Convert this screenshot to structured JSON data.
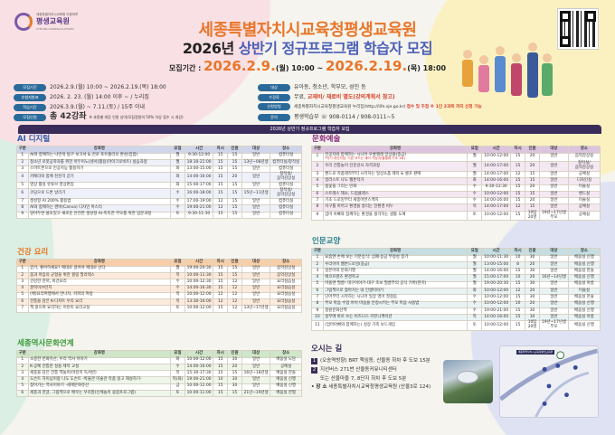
{
  "logo": {
    "small": "세종특별자치시교육청 이음마루",
    "name": "평생교육원",
    "eng": "LIFELONG LEARNING PLATFORM"
  },
  "header": {
    "title1": "세종특별자치시교육청평생교육원",
    "title2_year": "2026년",
    "title2_rest": "상반기 정규프로그램 학습자 모집",
    "period_label": "모집기간 :",
    "period_start": "2026.2.9.",
    "period_start_tail": "(월) 10:00 ~",
    "period_end": "2026.2.19.",
    "period_end_tail": "(목) 18:00"
  },
  "info": {
    "left": [
      {
        "label": "모집기간",
        "value": "2026.2.9.(월) 10:00 ~ 2026.2.19.(목) 18:00"
      },
      {
        "label": "추첨자발표",
        "value": "2026. 2. 23. (월) 14:00 이후 ~ / 누리집"
      },
      {
        "label": "학습기간",
        "value": "2026.3.9.(월) ~ 7.11.(토) / 15주 이내"
      },
      {
        "label": "모집인원",
        "value": "총 42강좌",
        "note": "※ 과정별 개강 인원 상이(모집정원의 50% 이상 접수 시 개강)"
      }
    ],
    "right": [
      {
        "label": "대상",
        "value": "유아동, 청소년, 학부모, 성인 등"
      },
      {
        "label": "수강료",
        "value": "무료, ",
        "highlight": "교재비/ 재료비 별도(강의계획서 참고)"
      },
      {
        "label": "신청방법",
        "value": "세종특별자치시교육청평생교육원 누리집(http://life.sje.go.kr) ",
        "highlight": "접수 및 추첨 ※ 1인 2과목 까지 신청 가능"
      },
      {
        "label": "문의",
        "value": "평생학습부 ☏ 908-0114 / 908-0111~5"
      }
    ]
  },
  "banner": "2026년 상반기 정규프로그램 학습자 모집",
  "columns": [
    "구분",
    "강좌명",
    "요일",
    "시간",
    "차시",
    "인원",
    "대상",
    "장소"
  ],
  "sections": [
    {
      "key": "ai",
      "title": "AI 디지털",
      "color": "#2a5aa8",
      "header_bg": "#cfd6ec",
      "row_bg": "#eef1f9",
      "rows": [
        [
          "1",
          "AI와 함께하는 나만의 탐구 보고서 & 진로 포트폴리오 완성(집합)",
          "월",
          "9:30-12:00",
          "15",
          "15",
          "일반",
          "컴퓨터실"
        ],
        [
          "2",
          "청소년 로봇공학자를 위한 아두이노(센서)활용(마이크로비트) 실습과정",
          "월",
          "18:30-21:00",
          "15",
          "15",
          "13년~08년생",
          "컴퓨터실/창작실"
        ],
        [
          "3",
          "스마트폰으로 인공지능 활용하기",
          "화",
          "13:00-15:00",
          "15",
          "15",
          "일반",
          "컴퓨터실"
        ],
        [
          "4",
          "카메라와 함께 천천히 걷기",
          "화",
          "14:00-16:00",
          "15",
          "20",
          "일반",
          "창작실/음악감상실"
        ],
        [
          "5",
          "영상 활용 유튜브 영상편집",
          "화",
          "15:00-17:00",
          "15",
          "15",
          "일반",
          "컴퓨터실"
        ],
        [
          "6",
          "코딩으로 드론 날리기",
          "수",
          "16:00-18:00",
          "15",
          "15",
          "15년~11년생",
          "창작실/음악감상실"
        ],
        [
          "7",
          "생성형 AI 200% 활용법",
          "수",
          "17:00-19:00",
          "12",
          "15",
          "일반",
          "컴퓨터실"
        ],
        [
          "8",
          "AI와 함께하는 캔바(Canva) 디자인 마스터",
          "수",
          "19:00-21:00",
          "12",
          "15",
          "일반",
          "컴퓨터실"
        ],
        [
          "9",
          "알아두면 쓸모있고 새로운 안전한 생성형 AI-똑똑한 부모를 위한 입문과정",
          "토",
          "9:30-11:30",
          "15",
          "15",
          "일반",
          "컴퓨터실"
        ]
      ]
    },
    {
      "key": "health",
      "title": "건강 요리",
      "color": "#e8731a",
      "header_bg": "#f6cfaa",
      "row_bg": "#fcebdc",
      "rows": [
        [
          "1",
          "걷기, 좋아하세요? 제대로 걸어야 제대로 산다",
          "월",
          "19:00-20:30",
          "15",
          "15",
          "일반",
          "음악감상실"
        ],
        [
          "2",
          "몸과 마음의 균형을 위한 힐링 필라테스",
          "목",
          "10:00-11:30",
          "15",
          "15",
          "일반",
          "음악감상실"
        ],
        [
          "3",
          "건강한 한끼, 비건요리",
          "수",
          "10:00-12:30",
          "15",
          "12",
          "일반",
          "요리실습실"
        ],
        [
          "4",
          "꿀떡이브런치",
          "수",
          "14:00-16:30",
          "15",
          "12",
          "일반",
          "요리실습실"
        ],
        [
          "5",
          "(베)요리여행에서 만나자, 커피의 여정",
          "목",
          "10:00-12:00",
          "12",
          "12",
          "일반",
          "요리실습실"
        ],
        [
          "6",
          "전통을 담은 K-디저트 우리 요리",
          "목",
          "13:30-16:00",
          "12",
          "12",
          "일반",
          "요리실습실"
        ],
        [
          "7",
          "책 읽으며 요리하는 어린이 요리교실",
          "토",
          "10:00-12:00",
          "15",
          "12",
          "13년~17년생",
          "요리실습실"
        ]
      ]
    },
    {
      "key": "history",
      "title": "세종역사문화연계",
      "color": "#3a9a3a",
      "header_bg": "#cfe6c8",
      "row_bg": "#eef6ea",
      "rows": [
        [
          "1",
          "소중한 문화유산, 우리 역사 이야기",
          "화",
          "10:00-12:00",
          "15",
          "30",
          "일반",
          "배움실 도담"
        ],
        [
          "2",
          "K-공예 전통한 성을 제작 교실",
          "수",
          "14:00-16:00",
          "15",
          "20",
          "일반",
          "공예실"
        ],
        [
          "3",
          "세종을 담은 전통 책놀이(어린이 독서반)",
          "목",
          "15:30-17:30",
          "15",
          "15",
          "16년~18년생",
          "배움실 한솔"
        ],
        [
          "4",
          "도슨트 하이넘이랑 나도 도슨트 -박물관 미술관 작품 읽고 해설하기-",
          "목(화)",
          "19:00-21:00",
          "10",
          "30",
          "일반",
          "배움실 신행"
        ],
        [
          "5",
          "찾아가는 역사이야기 -세계문화유산",
          "금",
          "10:00-12:00",
          "15",
          "30",
          "일반",
          "배움실 신행"
        ],
        [
          "6",
          "세종과 한글, 그림책으로 배우는 우리말(신체놀이 융합프로그램)",
          "토",
          "10:00-11:00",
          "15",
          "15",
          "21년~19년생",
          "배움실 한별"
        ]
      ]
    },
    {
      "key": "arts",
      "title": "문화예술",
      "color": "#8a2a7e",
      "header_bg": "#dcc4de",
      "row_bg": "#f4e8f2",
      "rows": [
        [
          "1",
          "전공자와 함께하는 시니어 우쿨렐레 앙상블(중급)",
          "월",
          "10:00-12:00",
          "15",
          "20",
          "일반",
          "음악감상실"
        ],
        [
          "2",
          "우리 전통놀이 전문강사 자격과정",
          "월",
          "14:00-17:00",
          "15",
          "20",
          "일반",
          "창작실/음악감상실"
        ],
        [
          "3",
          "펜드로 작품제작부터 시작하는 일상소품 제작 & 셀프 판매",
          "월",
          "14:00-17:00",
          "12",
          "15",
          "일반",
          "공예실"
        ],
        [
          "4",
          "일러스트 나도 웹툰작가",
          "화",
          "14:00-16:00",
          "15",
          "15",
          "일반",
          "디자인실"
        ],
        [
          "5",
          "봄꽃을 그리는 민화",
          "수",
          "9:30-12:30",
          "15",
          "20",
          "일반",
          "미술실"
        ],
        [
          "6",
          "스트레스 해소, 드럼클래스",
          "수",
          "10:00-12:00",
          "15",
          "15",
          "일반",
          "밴드실"
        ],
        [
          "7",
          "기초 드로잉부터 세종어반스케치",
          "수",
          "14:00-16:00",
          "15",
          "20",
          "일반",
          "미술실"
        ],
        [
          "8",
          "지구를 아끼고 환경을 살리는 친환경 비누",
          "목",
          "14:00-17:00",
          "12",
          "15",
          "일반",
          "공예실"
        ],
        [
          "9",
          "엄마 아빠와 함께하는 환경을 생각하는 생활 도예",
          "토",
          "10:00-12:00",
          "15",
          "10팀 20명",
          "19년~17년생 부모",
          "공예실"
        ]
      ],
      "note": "*악기 개인지참, 기본 코드는 제어 가능(우쿨렐레 기초 1회)"
    },
    {
      "key": "humanities",
      "title": "인문교양",
      "color": "#2a7f8f",
      "header_bg": "#c6dee2",
      "row_bg": "#e9f3f4",
      "rows": [
        [
          "1",
          "요즘엔 손에 보는 기분상식: 심폐·응급 부정성 증기",
          "월",
          "10:00-11:30",
          "10",
          "30",
          "일반",
          "배움실 신행"
        ],
        [
          "2",
          "우리아이 웹툰드로잉(중급)",
          "월",
          "13:00-15:00",
          "8",
          "20",
          "일반",
          "배움실 신행"
        ],
        [
          "3",
          "일본어와 문화기행",
          "월",
          "14:00-16:00",
          "15",
          "30",
          "일반",
          "배움실 한솔"
        ],
        [
          "4",
          "에코프렌즈 환경학교",
          "월",
          "15:00-17:00",
          "10",
          "20",
          "16년~14년생",
          "배움실 신행"
        ],
        [
          "5",
          "마을엔 필름! 대구이야기-대구 초보 필름부의 공식 기록(현지)",
          "월",
          "19:00-20:30",
          "15",
          "30",
          "일반",
          "배움실 아름"
        ],
        [
          "6",
          "그림책으로 찾아가는 내 인생이야기",
          "화",
          "10:00-12:00",
          "12",
          "20",
          "일반",
          "미술실"
        ],
        [
          "7",
          "단어부터 시작하는 시니어 일상 영어 첫걸음",
          "수",
          "10:00-12:00",
          "15",
          "30",
          "일반",
          "배움실 한솔"
        ],
        [
          "8",
          "부모 마음 수업 아이 마음을 안정시키는 부모 마음 사용법",
          "수",
          "10:00-12:00",
          "10",
          "20",
          "일반",
          "배움실 신행"
        ],
        [
          "9",
          "정원문화산책",
          "수",
          "19:00-21:00",
          "15",
          "30",
          "일반",
          "배움실 신행"
        ],
        [
          "10",
          "실무에 바로 쓰는 비즈니스 커뮤니케이션",
          "목",
          "14:00-16:00",
          "15",
          "30",
          "일반",
          "배움실 아름"
        ],
        [
          "11",
          "(엄마아빠와 함께하는) 성장 가족 보드게임",
          "토",
          "10:00-12:00",
          "15",
          "10팀 20명",
          "19년~17년생 부모",
          "배움실 신행"
        ]
      ]
    }
  ],
  "directions": {
    "title": "오시는 길",
    "items": [
      {
        "num": "1",
        "text": "(오송역방향) BRT 책임동, 산울동 하차 후 도보 15분"
      },
      {
        "num": "2",
        "text": "지선버스 271번 산울동커뮤니티센터"
      },
      {
        "num": "",
        "text": "또는 산울마을 7, 8단지 하차 후 도보 5분"
      }
    ],
    "place_label": "• 장  소",
    "place": "세종특별자치시교육청평생교육원 (산울3로 124)",
    "map_label": "세종특별자치시교육청평생교육원"
  }
}
